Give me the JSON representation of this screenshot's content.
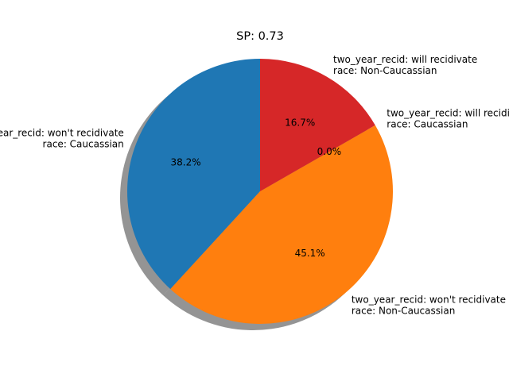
{
  "chart_data": {
    "type": "pie",
    "title": "SP: 0.73",
    "slices": [
      {
        "label_lines": [
          "two_year_recid: won't recidivate",
          "race: Caucassian"
        ],
        "value": 38.2,
        "pct_label": "38.2%",
        "color": "#1f77b4"
      },
      {
        "label_lines": [
          "two_year_recid: won't recidivate",
          "race: Non-Caucassian"
        ],
        "value": 45.1,
        "pct_label": "45.1%",
        "color": "#ff7f0e"
      },
      {
        "label_lines": [
          "two_year_recid: will recidivate",
          "race: Caucassian"
        ],
        "value": 0.0,
        "pct_label": "0.0%",
        "color": "#2ca02c"
      },
      {
        "label_lines": [
          "two_year_recid: will recidivate",
          "race: Non-Caucassian"
        ],
        "value": 16.7,
        "pct_label": "16.7%",
        "color": "#d62728"
      }
    ],
    "start_angle_deg": 90,
    "counterclockwise": true,
    "shadow": true
  }
}
